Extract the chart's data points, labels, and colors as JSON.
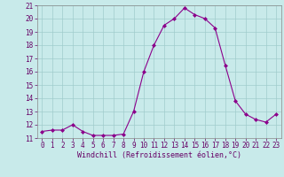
{
  "hours": [
    0,
    1,
    2,
    3,
    4,
    5,
    6,
    7,
    8,
    9,
    10,
    11,
    12,
    13,
    14,
    15,
    16,
    17,
    18,
    19,
    20,
    21,
    22,
    23
  ],
  "values": [
    11.5,
    11.6,
    11.6,
    12.0,
    11.5,
    11.2,
    11.2,
    11.2,
    11.3,
    13.0,
    16.0,
    18.0,
    19.5,
    20.0,
    20.8,
    20.3,
    20.0,
    19.3,
    16.5,
    13.8,
    12.8,
    12.4,
    12.2,
    12.8
  ],
  "line_color": "#8b008b",
  "marker_color": "#8b008b",
  "bg_color": "#c8eaea",
  "grid_color": "#a0cccc",
  "xlabel": "Windchill (Refroidissement éolien,°C)",
  "ylim": [
    11,
    21
  ],
  "xlim": [
    -0.5,
    23.5
  ],
  "yticks": [
    11,
    12,
    13,
    14,
    15,
    16,
    17,
    18,
    19,
    20,
    21
  ],
  "xticks": [
    0,
    1,
    2,
    3,
    4,
    5,
    6,
    7,
    8,
    9,
    10,
    11,
    12,
    13,
    14,
    15,
    16,
    17,
    18,
    19,
    20,
    21,
    22,
    23
  ],
  "tick_fontsize": 5.5,
  "xlabel_fontsize": 6.0
}
